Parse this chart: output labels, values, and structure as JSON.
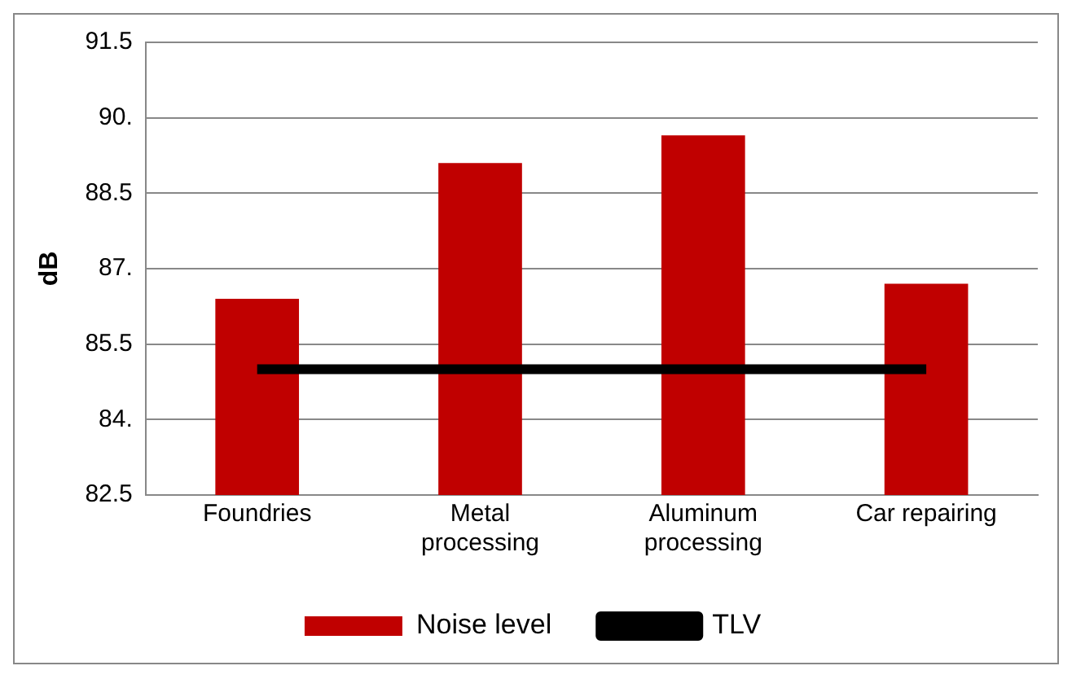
{
  "chart_data": {
    "type": "bar",
    "ylabel": "dB",
    "categories": [
      "Foundries",
      "Metal processing",
      "Aluminum processing",
      "Car repairing"
    ],
    "series": [
      {
        "name": "Noise level",
        "color": "#c00000",
        "values": [
          86.4,
          89.1,
          89.65,
          86.7
        ]
      },
      {
        "name": "TLV",
        "type": "line",
        "color": "#000000",
        "values": [
          85,
          85,
          85,
          85
        ]
      }
    ],
    "ylim": [
      82.5,
      91.5
    ],
    "yticks": [
      {
        "value": 82.5,
        "label": "82.5"
      },
      {
        "value": 84,
        "label": "84."
      },
      {
        "value": 85.5,
        "label": "85.5"
      },
      {
        "value": 87,
        "label": "87."
      },
      {
        "value": 88.5,
        "label": "88.5"
      },
      {
        "value": 90,
        "label": "90."
      },
      {
        "value": 91.5,
        "label": "91.5"
      }
    ],
    "grid": "y",
    "legend": "bottom",
    "marker": "none",
    "line_style": "solid"
  }
}
